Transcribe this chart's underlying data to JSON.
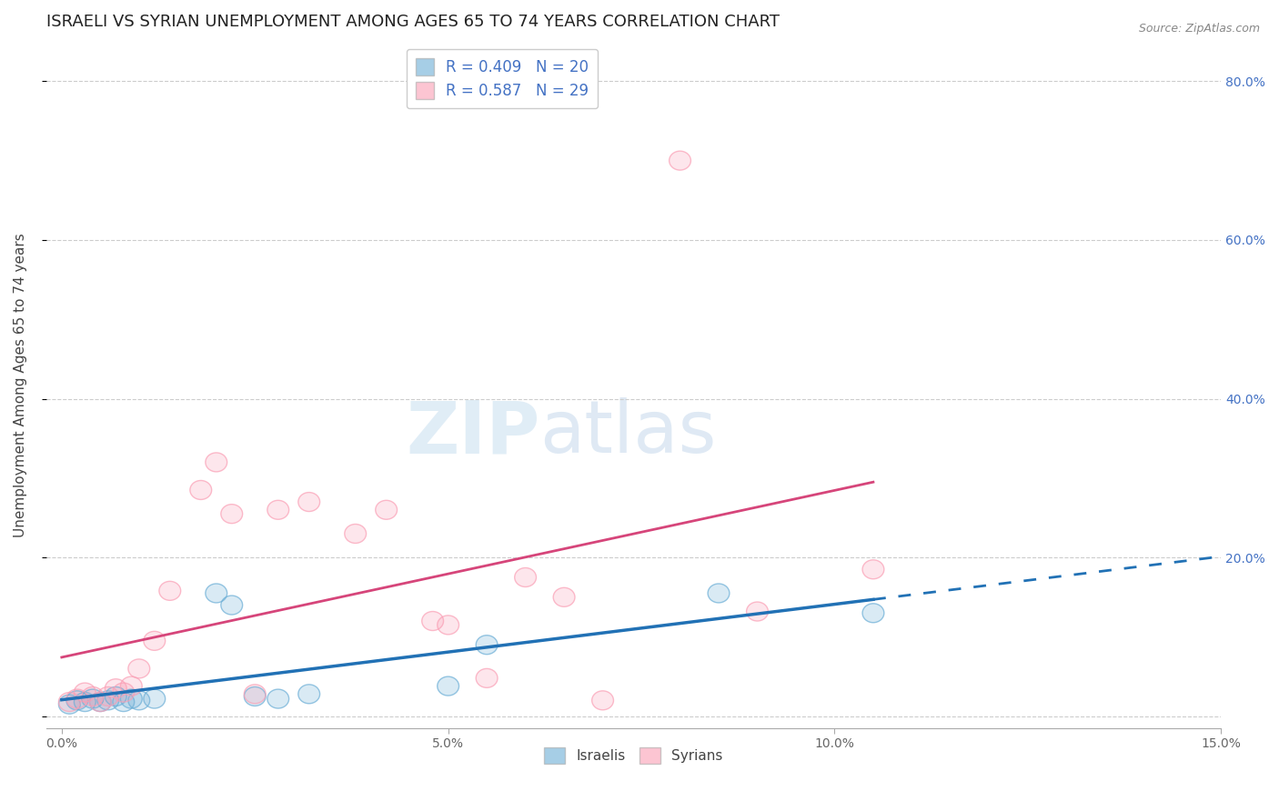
{
  "title": "ISRAELI VS SYRIAN UNEMPLOYMENT AMONG AGES 65 TO 74 YEARS CORRELATION CHART",
  "source": "Source: ZipAtlas.com",
  "ylabel": "Unemployment Among Ages 65 to 74 years",
  "xlim": [
    0.0,
    0.15
  ],
  "ylim": [
    0.0,
    0.85
  ],
  "yticks": [
    0.0,
    0.2,
    0.4,
    0.6,
    0.8
  ],
  "xticks": [
    0.0,
    0.05,
    0.1,
    0.15
  ],
  "israeli_x": [
    0.001,
    0.002,
    0.003,
    0.004,
    0.005,
    0.006,
    0.007,
    0.008,
    0.009,
    0.01,
    0.012,
    0.02,
    0.022,
    0.025,
    0.028,
    0.032,
    0.05,
    0.055,
    0.085,
    0.105
  ],
  "israeli_y": [
    0.015,
    0.02,
    0.018,
    0.022,
    0.018,
    0.02,
    0.025,
    0.018,
    0.022,
    0.02,
    0.022,
    0.155,
    0.14,
    0.025,
    0.022,
    0.028,
    0.038,
    0.09,
    0.155,
    0.13
  ],
  "syrian_x": [
    0.001,
    0.002,
    0.003,
    0.004,
    0.005,
    0.006,
    0.007,
    0.008,
    0.009,
    0.01,
    0.012,
    0.014,
    0.018,
    0.02,
    0.022,
    0.025,
    0.028,
    0.032,
    0.038,
    0.042,
    0.048,
    0.05,
    0.055,
    0.06,
    0.065,
    0.07,
    0.08,
    0.09,
    0.105
  ],
  "syrian_y": [
    0.018,
    0.022,
    0.03,
    0.025,
    0.018,
    0.025,
    0.035,
    0.03,
    0.038,
    0.06,
    0.095,
    0.158,
    0.285,
    0.32,
    0.255,
    0.028,
    0.26,
    0.27,
    0.23,
    0.26,
    0.12,
    0.115,
    0.048,
    0.175,
    0.15,
    0.02,
    0.7,
    0.132,
    0.185
  ],
  "israeli_color": "#6baed6",
  "syrian_color": "#fa9fb5",
  "isr_line_color": "#2171b5",
  "syr_line_color": "#d6457a",
  "israeli_R": 0.409,
  "israeli_N": 20,
  "syrian_R": 0.587,
  "syrian_N": 29,
  "legend_label_israeli": "Israelis",
  "legend_label_syrian": "Syrians",
  "background_color": "#ffffff",
  "grid_color": "#cccccc",
  "watermark_zip_color": "#c8dff0",
  "watermark_atlas_color": "#b0c8e8",
  "title_fontsize": 13,
  "axis_label_fontsize": 11,
  "tick_fontsize": 10,
  "right_tick_color": "#4472c4"
}
